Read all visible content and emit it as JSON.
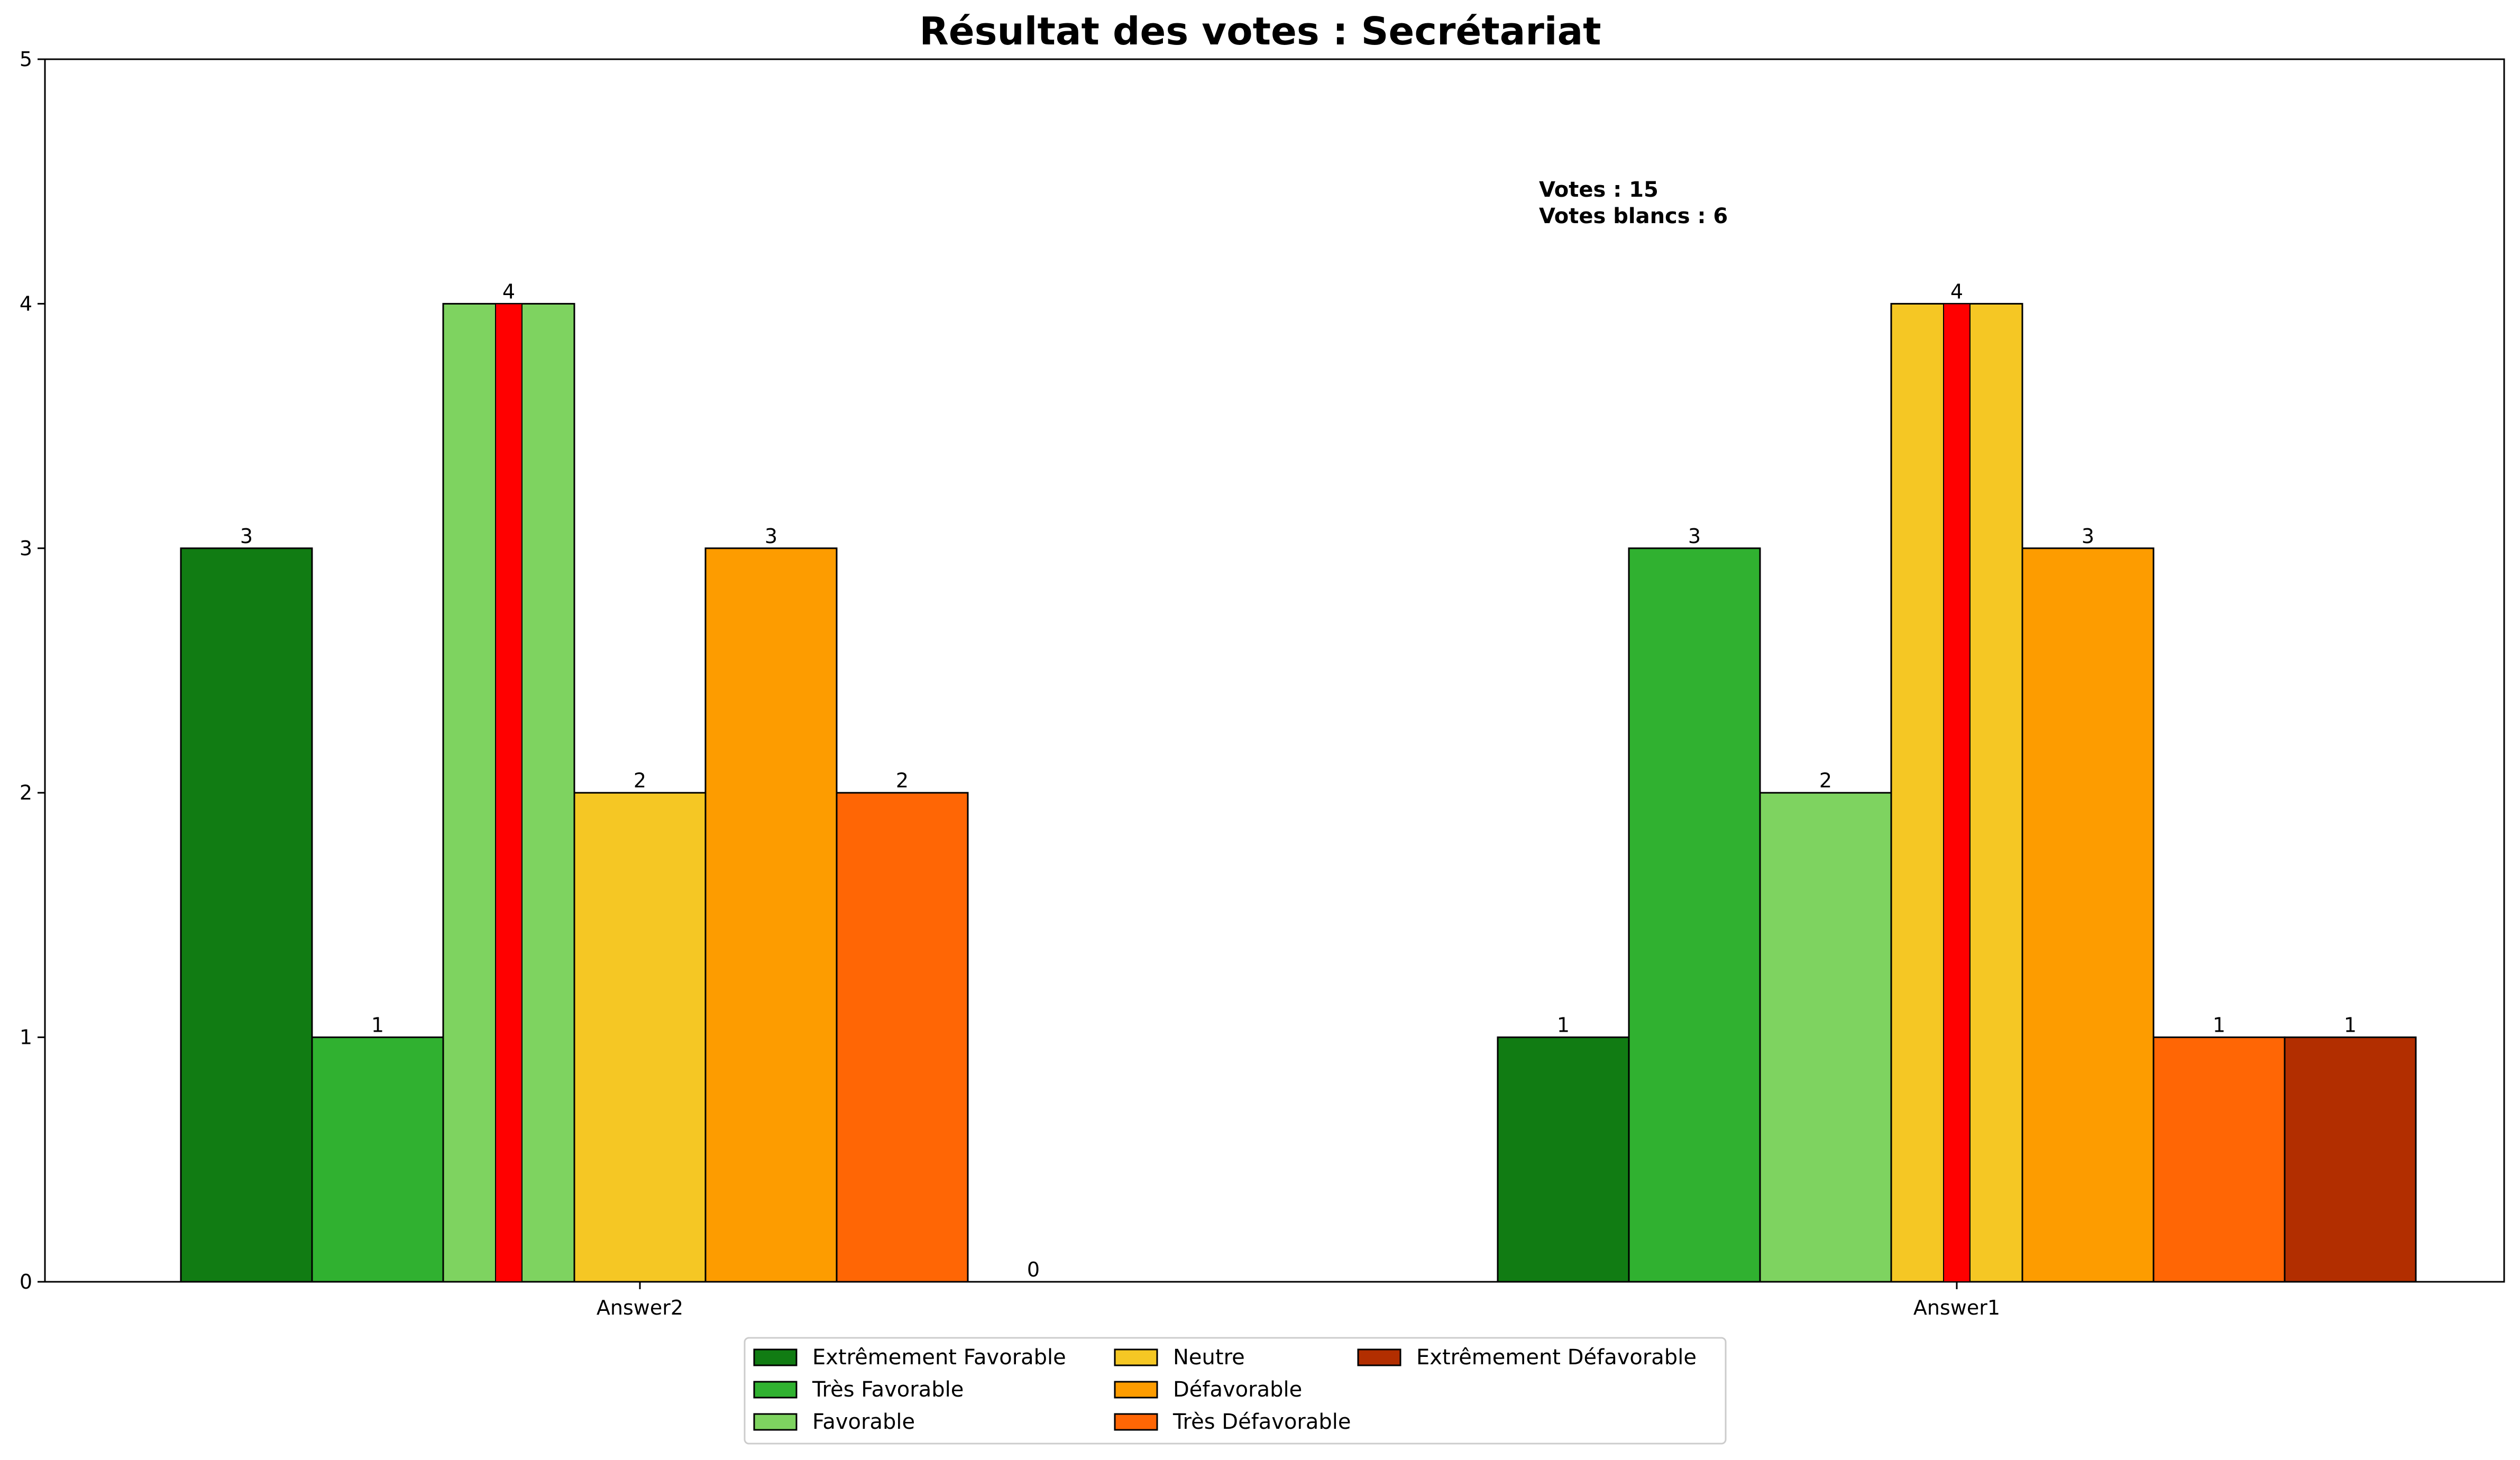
{
  "chart_data": {
    "type": "bar",
    "title": "Résultat des votes : Secrétariat",
    "xlabel": "",
    "ylabel": "",
    "ylim": [
      0,
      5
    ],
    "yticks": [
      0,
      1,
      2,
      3,
      4,
      5
    ],
    "categories": [
      "Answer2",
      "Answer1"
    ],
    "series": [
      {
        "name": "Extrêmement Favorable",
        "color": "#117c13",
        "values": [
          3,
          1
        ]
      },
      {
        "name": "Très Favorable",
        "color": "#30b130",
        "values": [
          1,
          3
        ]
      },
      {
        "name": "Favorable",
        "color": "#7ed360",
        "values": [
          4,
          2
        ]
      },
      {
        "name": "Neutre",
        "color": "#f5c724",
        "values": [
          2,
          4
        ]
      },
      {
        "name": "Défavorable",
        "color": "#fd9c00",
        "values": [
          3,
          3
        ]
      },
      {
        "name": "Très Défavorable",
        "color": "#ff6605",
        "values": [
          2,
          1
        ]
      },
      {
        "name": "Extrêmement Défavorable",
        "color": "#b22e00",
        "values": [
          0,
          1
        ]
      }
    ],
    "median_marker_color": "#ff0000",
    "annotations": [
      "Votes : 15",
      "Votes blancs : 6"
    ],
    "legend_position": "bottom-center",
    "grid": false
  }
}
